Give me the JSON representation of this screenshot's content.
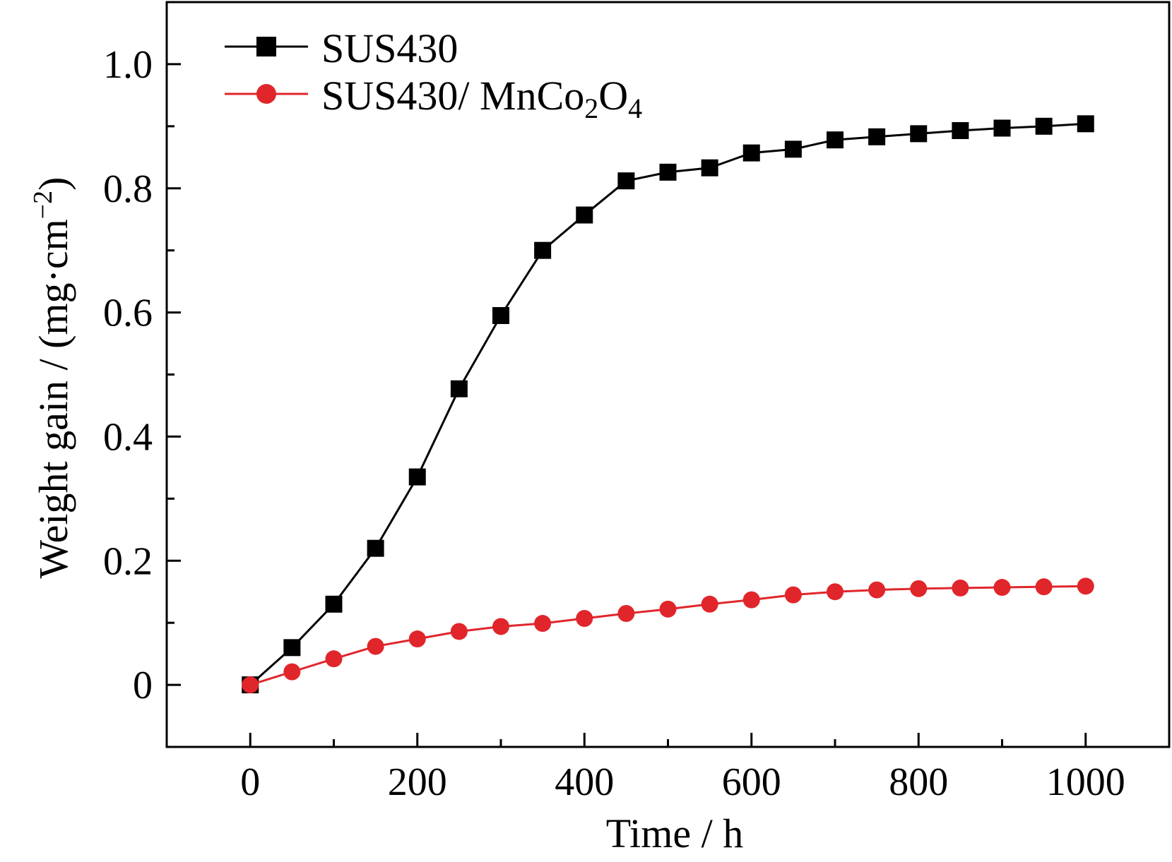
{
  "chart_data": {
    "type": "line",
    "title": "",
    "xlabel": "Time / h",
    "ylabel": "Weight gain / (mg·cm",
    "ylabel_superscript": "−2",
    "ylabel_close": ")",
    "xlim": [
      -100,
      1100
    ],
    "ylim": [
      -0.1,
      1.1
    ],
    "x_ticks": [
      0,
      200,
      400,
      600,
      800,
      1000
    ],
    "x_tick_labels": [
      "0",
      "200",
      "400",
      "600",
      "800",
      "1000"
    ],
    "y_ticks": [
      0,
      0.2,
      0.4,
      0.6,
      0.8,
      1.0
    ],
    "y_tick_labels": [
      "0",
      "0.2",
      "0.4",
      "0.6",
      "0.8",
      "1.0"
    ],
    "grid": false,
    "legend_position": "top-left",
    "x": [
      0,
      50,
      100,
      150,
      200,
      250,
      300,
      350,
      400,
      450,
      500,
      550,
      600,
      650,
      700,
      750,
      800,
      850,
      900,
      950,
      1000
    ],
    "series": [
      {
        "name": "SUS430",
        "color": "#000000",
        "marker": "square",
        "values": [
          0,
          0.06,
          0.13,
          0.22,
          0.335,
          0.477,
          0.595,
          0.7,
          0.757,
          0.812,
          0.826,
          0.833,
          0.857,
          0.863,
          0.878,
          0.883,
          0.888,
          0.893,
          0.897,
          0.9,
          0.904
        ]
      },
      {
        "name": "SUS430/ MnCo",
        "name_sub1": "2",
        "name_mid": "O",
        "name_sub2": "4",
        "color": "#e0262b",
        "marker": "circle",
        "values": [
          0,
          0.021,
          0.042,
          0.062,
          0.074,
          0.086,
          0.094,
          0.099,
          0.107,
          0.115,
          0.122,
          0.13,
          0.137,
          0.145,
          0.15,
          0.153,
          0.155,
          0.156,
          0.157,
          0.158,
          0.159
        ]
      }
    ]
  }
}
